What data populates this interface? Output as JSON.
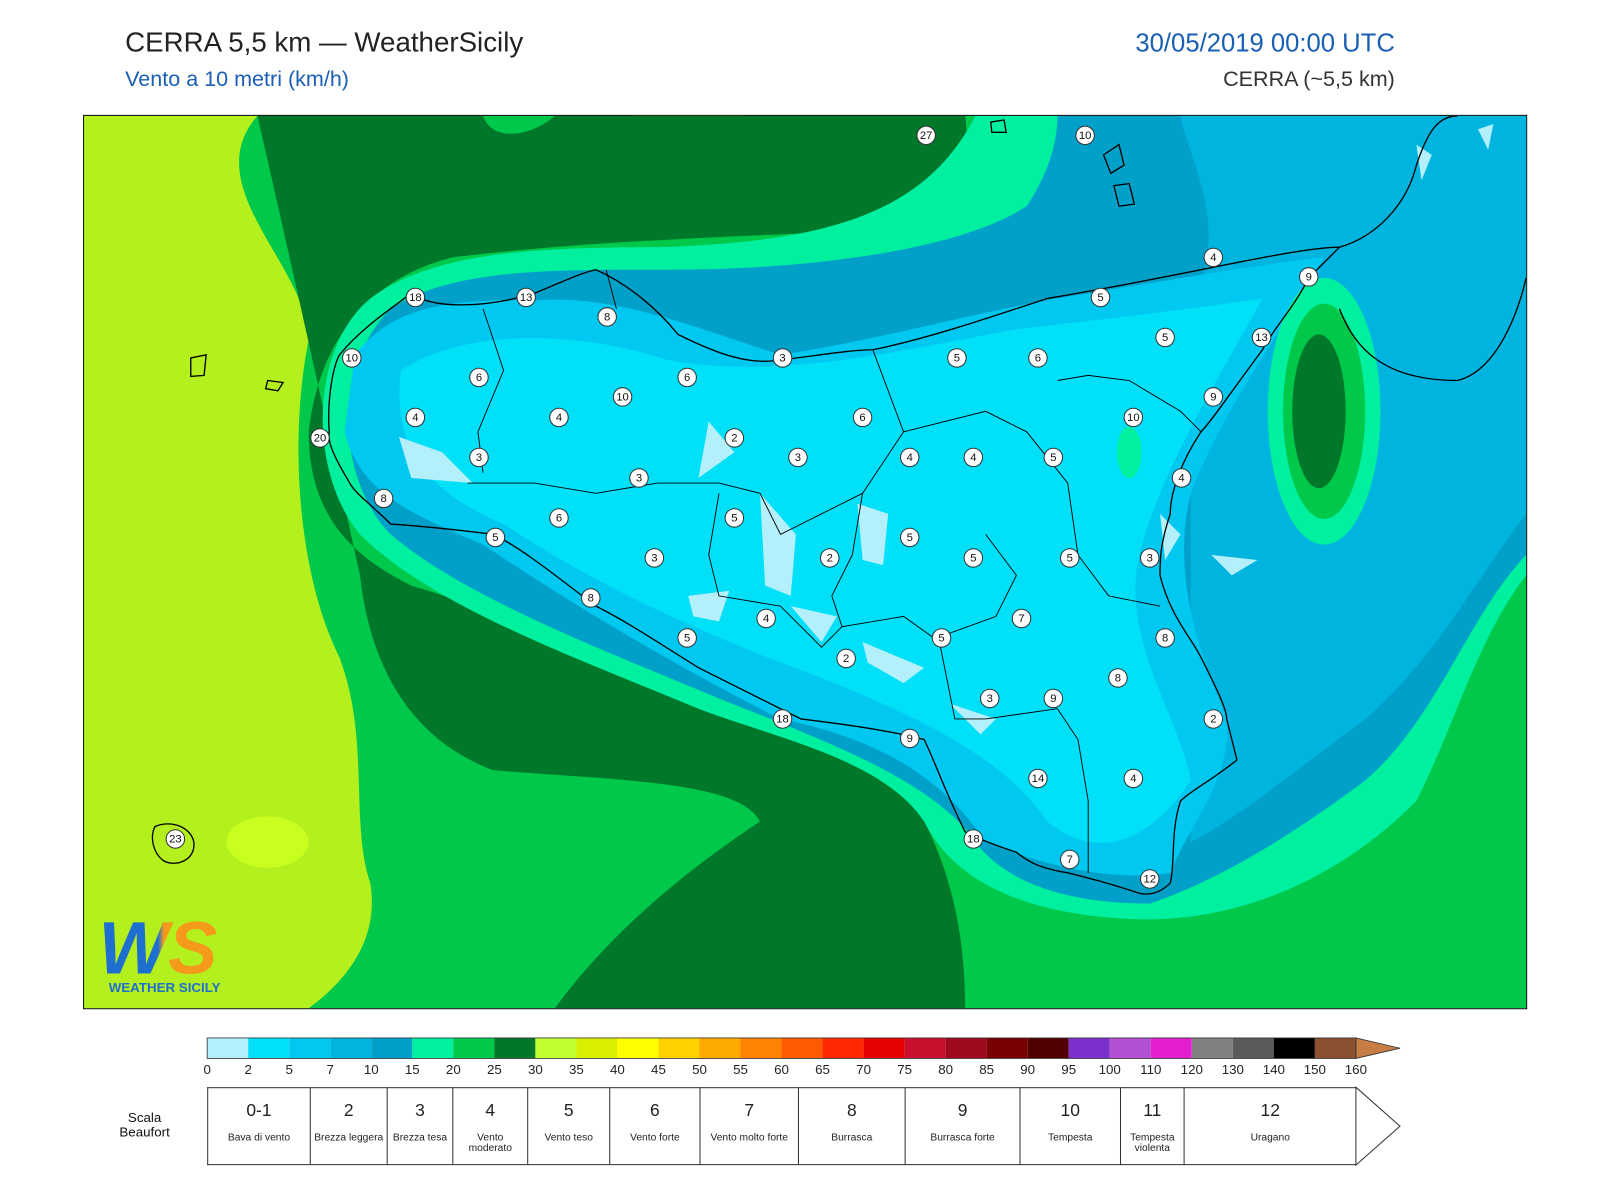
{
  "header": {
    "title": "CERRA 5,5 km — WeatherSicily",
    "subtitle": "Vento a 10 metri (km/h)",
    "datetime": "30/05/2019 00:00 UTC",
    "model": "CERRA (~5,5 km)"
  },
  "map": {
    "stations": [
      27,
      10,
      18,
      13,
      8,
      10,
      3,
      5,
      6,
      5,
      4,
      9,
      5,
      13,
      6,
      6,
      10,
      9,
      4,
      4,
      6,
      10,
      20,
      2,
      3,
      3,
      4,
      4,
      5,
      3,
      4,
      8,
      6,
      5,
      5,
      5,
      3,
      2,
      5,
      5,
      3,
      8,
      4,
      7,
      5,
      5,
      8,
      2,
      8,
      3,
      9,
      18,
      2,
      9,
      14,
      4,
      23,
      18,
      7,
      12
    ]
  },
  "colorbar": {
    "ticks": [
      0,
      2,
      5,
      7,
      10,
      15,
      20,
      25,
      30,
      35,
      40,
      45,
      50,
      55,
      60,
      65,
      70,
      75,
      80,
      85,
      90,
      95,
      100,
      110,
      120,
      130,
      140,
      150,
      160
    ],
    "colors": [
      "#b3f0fb",
      "#00e0f8",
      "#00c8f0",
      "#00b4e0",
      "#00a0c8",
      "#00f0a0",
      "#00c84a",
      "#007828",
      "#c0ff30",
      "#d8f000",
      "#ffff00",
      "#ffd200",
      "#ffaa00",
      "#ff8200",
      "#ff5a00",
      "#ff2800",
      "#e60000",
      "#c8102e",
      "#a00a1e",
      "#780000",
      "#500000",
      "#7b2fcc",
      "#b450d2",
      "#e61ed2",
      "#808080",
      "#5a5a5a",
      "#000000",
      "#8b5032",
      "#c87d46"
    ]
  },
  "beaufort": {
    "label": "Scala Beaufort",
    "levels": [
      {
        "force": "0-1",
        "description": "Bava di vento"
      },
      {
        "force": "2",
        "description": "Brezza leggera"
      },
      {
        "force": "3",
        "description": "Brezza tesa"
      },
      {
        "force": "4",
        "description": "Vento moderato"
      },
      {
        "force": "5",
        "description": "Vento teso"
      },
      {
        "force": "6",
        "description": "Vento forte"
      },
      {
        "force": "7",
        "description": "Vento molto forte"
      },
      {
        "force": "8",
        "description": "Burrasca"
      },
      {
        "force": "9",
        "description": "Burrasca forte"
      },
      {
        "force": "10",
        "description": "Tempesta"
      },
      {
        "force": "11",
        "description": "Tempesta violenta"
      },
      {
        "force": "12",
        "description": "Uragano"
      }
    ]
  },
  "logo": {
    "mark": "WS",
    "name": "WEATHER SICILY"
  }
}
